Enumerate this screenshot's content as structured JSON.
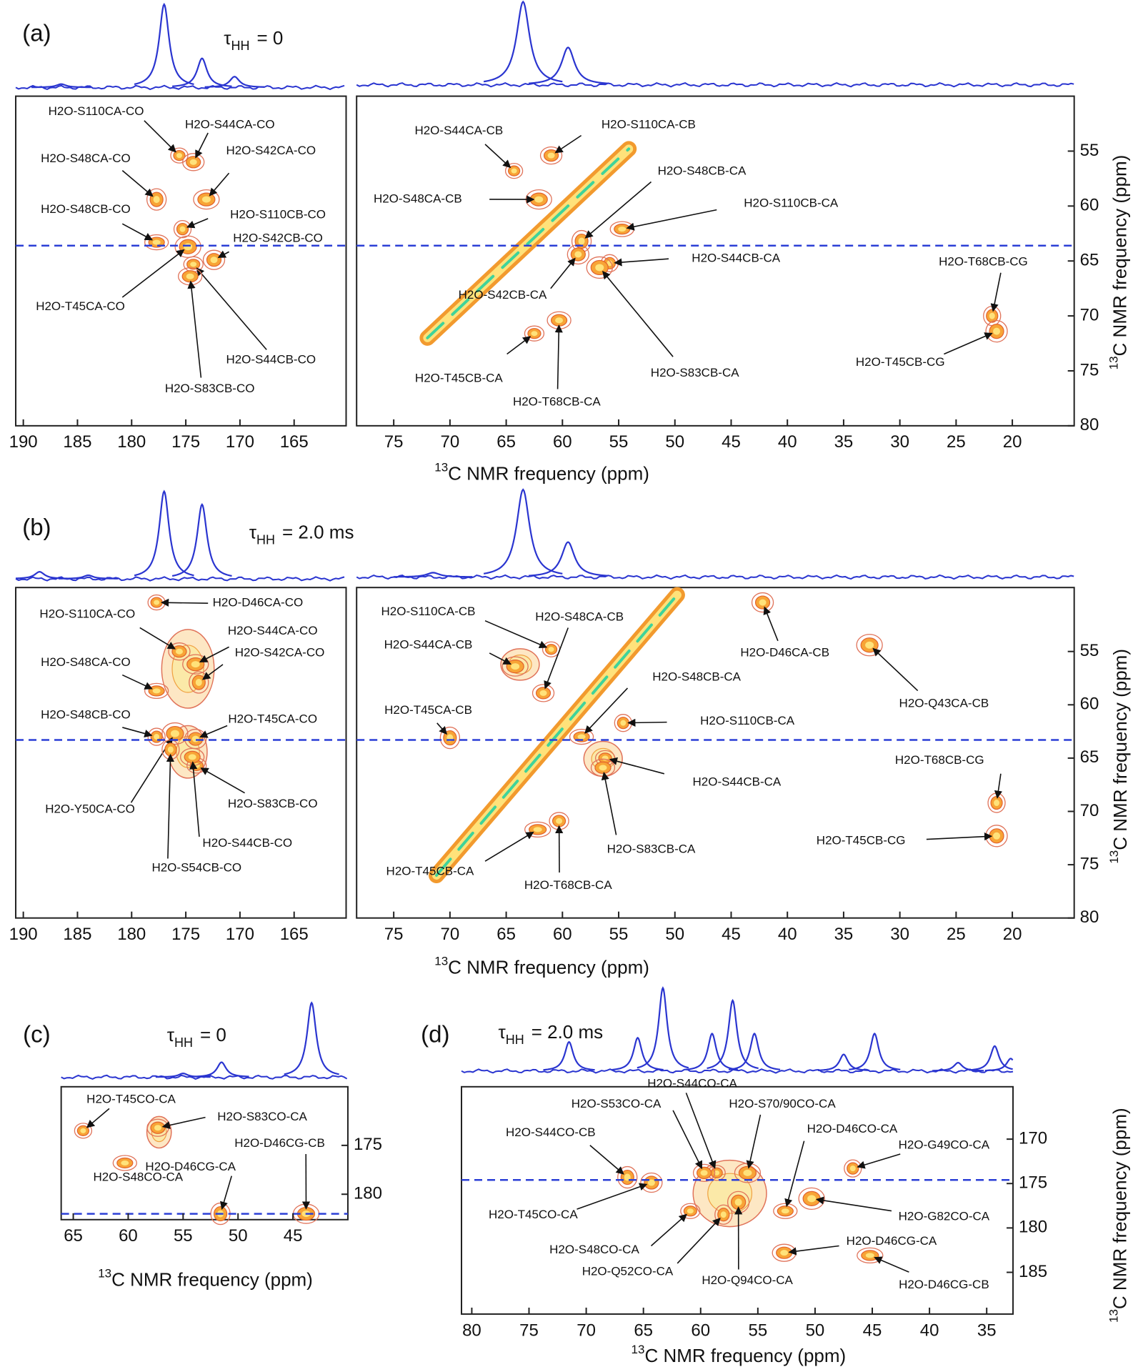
{
  "chart_data": [
    {
      "type": "contour",
      "label": "(a)",
      "tau": {
        "symbol": "τ",
        "subscript": "HH",
        "text": "= 0"
      },
      "xlabel": {
        "superscript": "13",
        "text": "C NMR frequency (ppm)"
      },
      "ylabel": {
        "superscript": "13",
        "text": "C NMR frequency (ppm)"
      },
      "plots": [
        {
          "xlim": [
            190.7,
            160.2
          ],
          "ylim": [
            50,
            80
          ],
          "xticks": [
            190,
            185,
            180,
            175,
            170,
            165
          ],
          "dashed_y": 63.6,
          "slice": {
            "x": [
              186.5,
              177,
              173.5,
              170.5
            ],
            "height": [
              0.04,
              1,
              0.35,
              0.13
            ]
          },
          "annotations": [
            {
              "label": "H2O-S110CA-CO",
              "x": 175.6,
              "y": 55.4
            },
            {
              "label": "H2O-S44CA-CO",
              "x": 174.3,
              "y": 56.0
            },
            {
              "label": "H2O-S42CA-CO",
              "x": 173.1,
              "y": 59.4
            },
            {
              "label": "H2O-S48CA-CO",
              "x": 177.7,
              "y": 59.4
            },
            {
              "label": "H2O-S48CB-CO",
              "x": 177.7,
              "y": 63.3
            },
            {
              "label": "H2O-S110CB-CO",
              "x": 175.3,
              "y": 62.1
            },
            {
              "label": "H2O-S42CB-CO",
              "x": 172.4,
              "y": 64.9
            },
            {
              "label": "H2O-T45CA-CO",
              "x": 174.8,
              "y": 63.7
            },
            {
              "label": "H2O-S44CB-CO",
              "x": 174.3,
              "y": 65.3
            },
            {
              "label": "H2O-S83CB-CO",
              "x": 174.6,
              "y": 66.4
            }
          ]
        },
        {
          "xlim": [
            78.3,
            14.5
          ],
          "ylim": [
            50,
            80
          ],
          "xticks": [
            75,
            70,
            65,
            60,
            55,
            50,
            45,
            40,
            35,
            30,
            25,
            20
          ],
          "yticks": [
            55,
            60,
            65,
            70,
            75,
            80
          ],
          "dashed_y": 63.6,
          "slice": {
            "x": [
              63.5,
              59.5
            ],
            "height": [
              1,
              0.45
            ]
          },
          "diagonal": {
            "x": [
              72,
              54.1
            ],
            "y": [
              72,
              54.8
            ]
          },
          "annotations": [
            {
              "label": "H2O-S44CA-CB",
              "x": 64.3,
              "y": 56.8
            },
            {
              "label": "H2O-S110CA-CB",
              "x": 61.0,
              "y": 55.4
            },
            {
              "label": "H2O-S48CA-CB",
              "x": 62.1,
              "y": 59.4
            },
            {
              "label": "H2O-S48CB-CA",
              "x": 58.3,
              "y": 63.2
            },
            {
              "label": "H2O-S110CB-CA",
              "x": 54.7,
              "y": 62.1
            },
            {
              "label": "H2O-S44CB-CA",
              "x": 55.8,
              "y": 65.2
            },
            {
              "label": "H2O-S42CB-CA",
              "x": 58.6,
              "y": 64.4
            },
            {
              "label": "H2O-S83CB-CA",
              "x": 56.7,
              "y": 65.6
            },
            {
              "label": "H2O-T45CB-CA",
              "x": 62.5,
              "y": 71.6
            },
            {
              "label": "H2O-T68CB-CA",
              "x": 60.3,
              "y": 70.4
            },
            {
              "label": "H2O-T68CB-CG",
              "x": 21.8,
              "y": 70.0
            },
            {
              "label": "H2O-T45CB-CG",
              "x": 21.4,
              "y": 71.4
            }
          ]
        }
      ]
    },
    {
      "type": "contour",
      "label": "(b)",
      "tau": {
        "symbol": "τ",
        "subscript": "HH",
        "text": "= 2.0 ms"
      },
      "xlabel": {
        "superscript": "13",
        "text": "C NMR frequency (ppm)"
      },
      "ylabel": {
        "superscript": "13",
        "text": "C NMR frequency (ppm)"
      },
      "plots": [
        {
          "xlim": [
            190.7,
            160.2
          ],
          "ylim": [
            49,
            80
          ],
          "xticks": [
            190,
            185,
            180,
            175,
            170,
            165
          ],
          "dashed_y": 63.3,
          "slice": {
            "x": [
              188.5,
              184,
              177,
              173.5
            ],
            "height": [
              0.08,
              0.04,
              1,
              0.85
            ]
          },
          "annotations": [
            {
              "label": "H2O-D46CA-CO",
              "x": 177.7,
              "y": 50.4
            },
            {
              "label": "H2O-S110CA-CO",
              "x": 175.6,
              "y": 55.0
            },
            {
              "label": "H2O-S44CA-CO",
              "x": 174.1,
              "y": 56.2
            },
            {
              "label": "H2O-S42CA-CO",
              "x": 173.8,
              "y": 57.9
            },
            {
              "label": "H2O-S48CA-CO",
              "x": 177.7,
              "y": 58.7
            },
            {
              "label": "H2O-S48CB-CO",
              "x": 177.7,
              "y": 63.0
            },
            {
              "label": "H2O-T45CA-CO",
              "x": 174.1,
              "y": 63.2
            },
            {
              "label": "H2O-Y50CA-CO",
              "x": 176.0,
              "y": 62.7
            },
            {
              "label": "H2O-S83CB-CO",
              "x": 174.0,
              "y": 65.7
            },
            {
              "label": "H2O-S44CB-CO",
              "x": 174.4,
              "y": 64.9
            },
            {
              "label": "H2O-S54CB-CO",
              "x": 176.4,
              "y": 64.2
            }
          ]
        },
        {
          "xlim": [
            78.3,
            14.5
          ],
          "ylim": [
            49,
            80
          ],
          "xticks": [
            75,
            70,
            65,
            60,
            55,
            50,
            45,
            40,
            35,
            30,
            25,
            20
          ],
          "yticks": [
            55,
            60,
            65,
            70,
            75,
            80
          ],
          "dashed_y": 63.3,
          "slice": {
            "x": [
              71.5,
              63.5,
              59.5
            ],
            "height": [
              0.05,
              1,
              0.4
            ]
          },
          "diagonal": {
            "x": [
              71.2,
              49.8
            ],
            "y": [
              76.0,
              49.7
            ]
          },
          "annotations": [
            {
              "label": "H2O-S110CA-CB",
              "x": 61.0,
              "y": 54.8
            },
            {
              "label": "H2O-S48CA-CB",
              "x": 61.7,
              "y": 58.9
            },
            {
              "label": "H2O-S44CA-CB",
              "x": 64.2,
              "y": 56.4
            },
            {
              "label": "H2O-T45CA-CB",
              "x": 70.0,
              "y": 63.1
            },
            {
              "label": "H2O-S48CB-CA",
              "x": 58.3,
              "y": 63.0
            },
            {
              "label": "H2O-S110CB-CA",
              "x": 54.6,
              "y": 61.7
            },
            {
              "label": "H2O-D46CA-CB",
              "x": 42.2,
              "y": 50.4
            },
            {
              "label": "H2O-Q43CA-CB",
              "x": 32.7,
              "y": 54.4
            },
            {
              "label": "H2O-S44CB-CA",
              "x": 56.2,
              "y": 65.0
            },
            {
              "label": "H2O-S83CB-CA",
              "x": 56.4,
              "y": 65.9
            },
            {
              "label": "H2O-T68CB-CG",
              "x": 21.4,
              "y": 69.2
            },
            {
              "label": "H2O-T45CB-CG",
              "x": 21.4,
              "y": 72.3
            },
            {
              "label": "H2O-T45CB-CA",
              "x": 62.2,
              "y": 71.7
            },
            {
              "label": "H2O-T68CB-CA",
              "x": 60.3,
              "y": 70.9
            }
          ]
        }
      ]
    },
    {
      "type": "contour",
      "label": "(c)",
      "tau": {
        "symbol": "τ",
        "subscript": "HH",
        "text": "= 0"
      },
      "xlabel": {
        "superscript": "13",
        "text": "C NMR frequency (ppm)"
      },
      "plots": [
        {
          "xlim": [
            66.1,
            40.0
          ],
          "ylim": [
            169.0,
            182.6
          ],
          "xticks": [
            65,
            60,
            55,
            50,
            45
          ],
          "yticks": [
            175,
            180
          ],
          "dashed_y": 182.0,
          "slice": {
            "x": [
              55,
              51.5,
              43.3
            ],
            "height": [
              0.05,
              0.2,
              1
            ]
          },
          "annotations": [
            {
              "label": "H2O-T45CO-CA",
              "x": 64.1,
              "y": 173.5
            },
            {
              "label": "H2O-S83CO-CA",
              "x": 57.3,
              "y": 173.2
            },
            {
              "label": "H2O-D46CG-CB",
              "x": 43.8,
              "y": 182.0
            },
            {
              "label": "H2O-D46CG-CA",
              "x": 51.6,
              "y": 182.0
            },
            {
              "label": "H2O-S48CO-CA",
              "x": 60.3,
              "y": 176.8
            }
          ]
        }
      ]
    },
    {
      "type": "contour",
      "label": "(d)",
      "tau": {
        "symbol": "τ",
        "subscript": "HH",
        "text": "= 2.0 ms"
      },
      "xlabel": {
        "superscript": "13",
        "text": "C NMR frequency (ppm)"
      },
      "ylabel": {
        "superscript": "13",
        "text": "C NMR frequency (ppm)"
      },
      "plots": [
        {
          "xlim": [
            80.9,
            32.7
          ],
          "ylim": [
            164.1,
            189.7
          ],
          "xticks": [
            80,
            75,
            70,
            65,
            60,
            55,
            50,
            45,
            40,
            35
          ],
          "yticks": [
            170,
            175,
            180,
            185
          ],
          "dashed_y": 174.6,
          "slice": {
            "x": [
              71.5,
              65.5,
              63.3,
              59,
              57.2,
              55.3,
              47.5,
              44.8,
              37.5,
              34.3,
              32.9
            ],
            "height": [
              0.35,
              0.4,
              1,
              0.45,
              0.85,
              0.45,
              0.2,
              0.45,
              0.1,
              0.3,
              0.15
            ]
          },
          "annotations": [
            {
              "label": "H2O-S44CO-CA",
              "x": 58.6,
              "y": 173.8
            },
            {
              "label": "H2O-S53CO-CA",
              "x": 59.7,
              "y": 173.8
            },
            {
              "label": "H2O-S70/90CO-CA",
              "x": 55.9,
              "y": 173.8
            },
            {
              "label": "H2O-S44CO-CB",
              "x": 66.4,
              "y": 174.3
            },
            {
              "label": "H2O-D46CO-CA",
              "x": 52.6,
              "y": 178.1
            },
            {
              "label": "H2O-G49CO-CA",
              "x": 46.7,
              "y": 173.3
            },
            {
              "label": "H2O-T45CO-CA",
              "x": 64.3,
              "y": 174.9
            },
            {
              "label": "H2O-G82CO-CA",
              "x": 50.3,
              "y": 176.7
            },
            {
              "label": "H2O-S48CO-CA",
              "x": 60.9,
              "y": 178.1
            },
            {
              "label": "H2O-D46CG-CA",
              "x": 52.7,
              "y": 182.8
            },
            {
              "label": "H2O-Q52CO-CA",
              "x": 58.0,
              "y": 178.5
            },
            {
              "label": "H2O-Q94CO-CA",
              "x": 56.7,
              "y": 177.1
            },
            {
              "label": "H2O-D46CG-CB",
              "x": 45.2,
              "y": 183.1
            }
          ]
        }
      ]
    }
  ]
}
